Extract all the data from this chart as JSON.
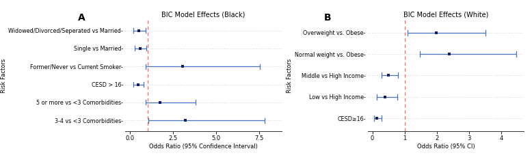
{
  "panel_a": {
    "title": "BIC Model Effects (Black)",
    "xlabel": "Odds Ratio (95% Confidence Interval)",
    "ylabel": "Risk Factors",
    "xlim": [
      -0.3,
      8.8
    ],
    "xticks": [
      0.0,
      2.5,
      5.0,
      7.5
    ],
    "xticklabels": [
      "0.0",
      "2.5",
      "5.0",
      "7.5"
    ],
    "vline": 1.0,
    "labels": [
      "Widowed/Divorced/Seperated vs Married-",
      "Single vs Married-",
      "Former/Never vs Current Smoker-",
      "CESD > 16-",
      "5 or more vs <3 Comorbidities-",
      "3-4 vs <3 Comorbidities-"
    ],
    "points": [
      0.5,
      0.6,
      3.05,
      0.48,
      1.72,
      3.2
    ],
    "ci_low": [
      0.18,
      0.28,
      0.88,
      0.2,
      0.88,
      1.05
    ],
    "ci_high": [
      0.88,
      0.93,
      7.55,
      0.78,
      3.8,
      7.8
    ]
  },
  "panel_b": {
    "title": "BIC Model Effects (White)",
    "xlabel": "Odds Ratio (95% CI)",
    "ylabel": "Risk Factors",
    "xlim": [
      -0.15,
      4.7
    ],
    "xticks": [
      0,
      1,
      2,
      3,
      4
    ],
    "xticklabels": [
      "0",
      "1",
      "2",
      "3",
      "4"
    ],
    "vline": 1.0,
    "labels": [
      "Overweight vs. Obese-",
      "Normal weight vs. Obese-",
      "Middle vs High Income-",
      "Low vs High Income-",
      "CESD≥16-"
    ],
    "points": [
      1.98,
      2.38,
      0.5,
      0.38,
      0.13
    ],
    "ci_low": [
      1.08,
      1.48,
      0.28,
      0.14,
      0.06
    ],
    "ci_high": [
      3.5,
      4.45,
      0.8,
      0.78,
      0.28
    ]
  },
  "point_color": "#1a1a5e",
  "line_color": "#4472c4",
  "vline_color": "#ff6666",
  "grid_color": "#aaaaaa",
  "bg_color": "#ffffff",
  "font_size": 6.0,
  "title_font_size": 7.0,
  "label_font_size": 5.8
}
